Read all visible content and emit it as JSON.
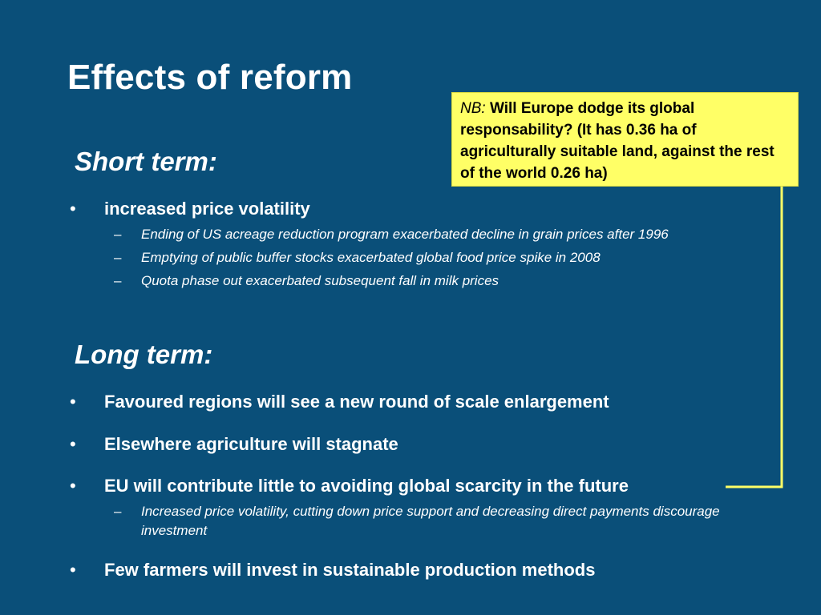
{
  "slide": {
    "title": "Effects of reform"
  },
  "note": {
    "label": "NB:",
    "text": " Will Europe dodge its global responsability? (It has 0.36 ha of agriculturally suitable land, against the rest of the world 0.26 ha)"
  },
  "short_term": {
    "heading": "Short term:",
    "bullets": [
      {
        "text": "increased price volatility",
        "subs": [
          "Ending of US acreage reduction program exacerbated decline in grain prices after 1996",
          "Emptying of public buffer stocks exacerbated global food price spike in 2008",
          "Quota phase out exacerbated subsequent fall in milk prices"
        ]
      }
    ]
  },
  "long_term": {
    "heading": "Long term:",
    "bullets": [
      {
        "text": "Favoured regions will see a new round of scale enlargement"
      },
      {
        "text": "Elsewhere agriculture will stagnate"
      },
      {
        "text": "EU will contribute little to avoiding global scarcity in the future",
        "subs": [
          "Increased price volatility, cutting down price support and decreasing direct payments discourage investment"
        ]
      },
      {
        "text": "Few farmers will invest in sustainable production methods"
      }
    ]
  },
  "symbols": {
    "bullet": "•",
    "dash": "–"
  },
  "colors": {
    "background": "#0a4f79",
    "note_background": "#ffff66",
    "text": "#ffffff"
  }
}
